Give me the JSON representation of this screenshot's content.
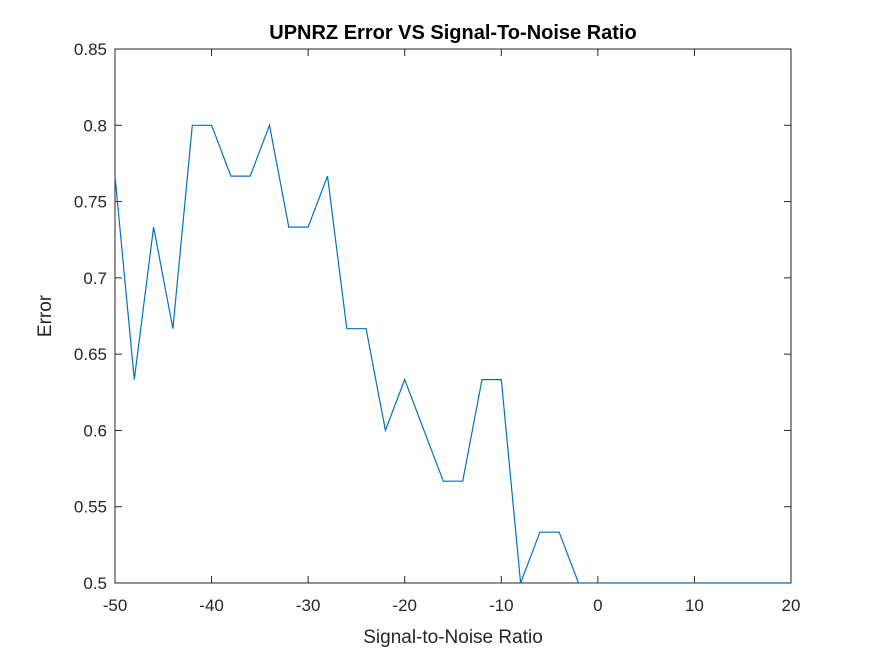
{
  "chart_data": {
    "type": "line",
    "title": "UPNRZ Error VS Signal-To-Noise Ratio",
    "xlabel": "Signal-to-Noise Ratio",
    "ylabel": "Error",
    "xlim": [
      -50,
      20
    ],
    "ylim": [
      0.5,
      0.85
    ],
    "x_ticks": [
      -50,
      -40,
      -30,
      -20,
      -10,
      0,
      10,
      20
    ],
    "y_ticks": [
      0.5,
      0.55,
      0.6,
      0.65,
      0.7,
      0.75,
      0.8,
      0.85
    ],
    "x_tick_labels": [
      "-50",
      "-40",
      "-30",
      "-20",
      "-10",
      "0",
      "10",
      "20"
    ],
    "y_tick_labels": [
      "0.5",
      "0.55",
      "0.6",
      "0.65",
      "0.7",
      "0.75",
      "0.8",
      "0.85"
    ],
    "grid": false,
    "line_color": "#0072BD",
    "series": [
      {
        "x": [
          -50,
          -48,
          -46,
          -44,
          -42,
          -40,
          -38,
          -36,
          -34,
          -32,
          -30,
          -28,
          -26,
          -24,
          -22,
          -20,
          -18,
          -16,
          -14,
          -12,
          -10,
          -8,
          -6,
          -4,
          -2,
          0,
          2,
          4,
          6,
          8,
          10,
          12,
          14,
          16,
          18,
          20
        ],
        "values": [
          0.7667,
          0.6333,
          0.7333,
          0.6667,
          0.8,
          0.8,
          0.7667,
          0.7667,
          0.8,
          0.7333,
          0.7333,
          0.7667,
          0.6667,
          0.6667,
          0.6,
          0.6333,
          0.6,
          0.5667,
          0.5667,
          0.6333,
          0.6333,
          0.5,
          0.5333,
          0.5333,
          0.5,
          0.5,
          0.5,
          0.5,
          0.5,
          0.5,
          0.5,
          0.5,
          0.5,
          0.5,
          0.5,
          0.5
        ]
      }
    ]
  }
}
